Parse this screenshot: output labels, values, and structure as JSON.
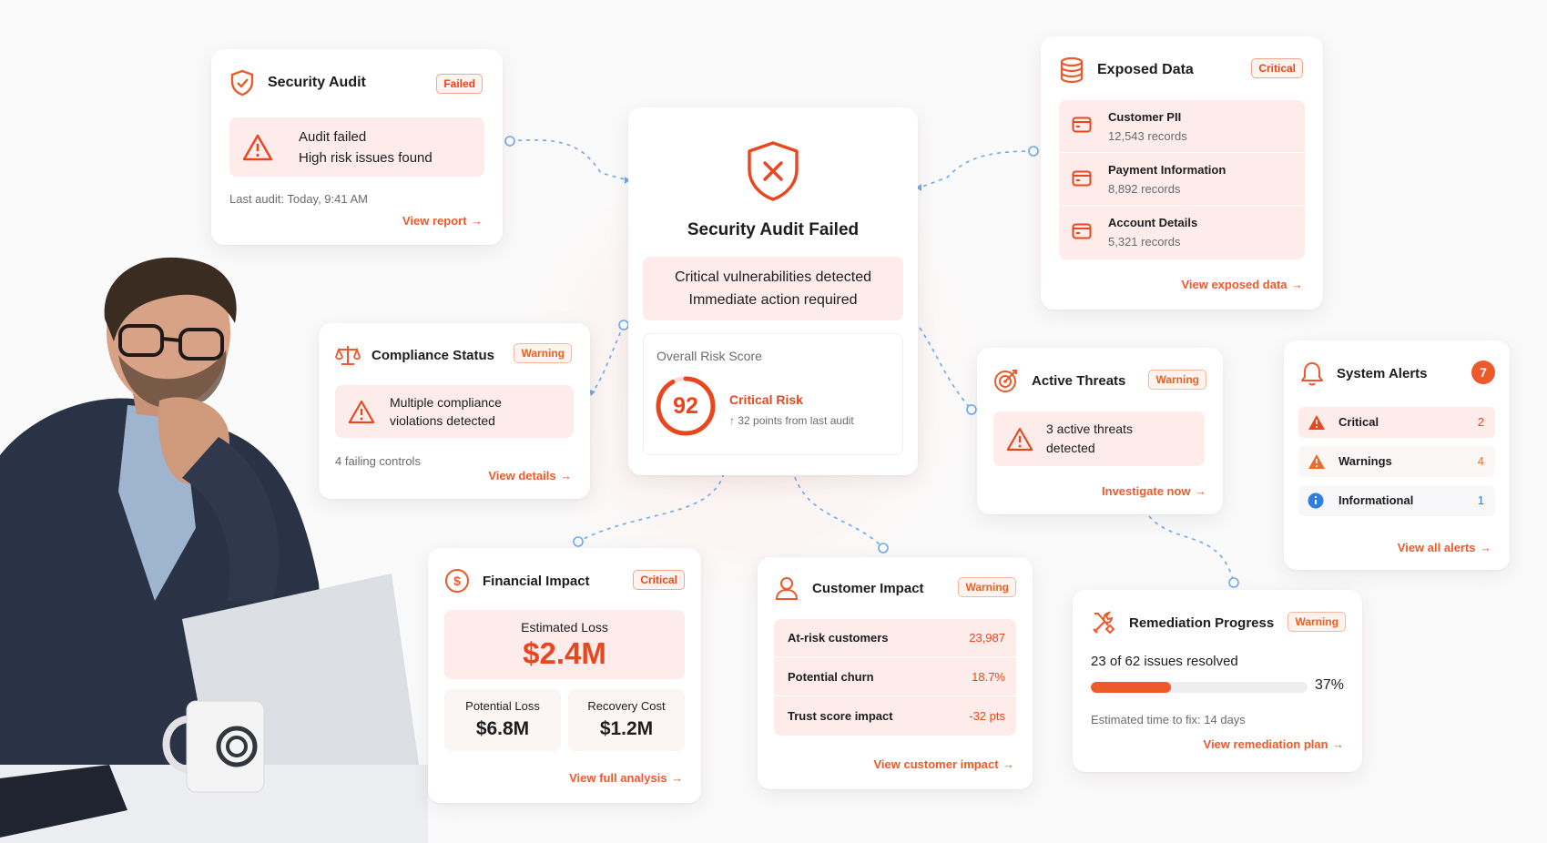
{
  "security_audit": {
    "title": "Security Audit",
    "badge": "Failed",
    "alert_line1": "Audit failed",
    "alert_line2": "High risk issues found",
    "last_audit": "Last audit: Today, 9:41 AM",
    "link": "View report"
  },
  "center": {
    "title": "Security Audit Failed",
    "msg_line1": "Critical vulnerabilities detected",
    "msg_line2": "Immediate action required",
    "risk_label": "Overall Risk Score",
    "score": "92",
    "score_fraction": 0.92,
    "risk_level": "Critical Risk",
    "delta": "32 points from last audit"
  },
  "exposed": {
    "title": "Exposed Data",
    "badge": "Critical",
    "items": [
      {
        "label": "Customer PII",
        "value": "12,543 records"
      },
      {
        "label": "Payment Information",
        "value": "8,892 records"
      },
      {
        "label": "Account Details",
        "value": "5,321 records"
      }
    ],
    "link": "View exposed data"
  },
  "compliance": {
    "title": "Compliance Status",
    "badge": "Warning",
    "alert_line1": "Multiple compliance",
    "alert_line2": "violations detected",
    "note": "4 failing controls",
    "link": "View details"
  },
  "threats": {
    "title": "Active Threats",
    "badge": "Warning",
    "alert_line1": "3 active threats",
    "alert_line2": "detected",
    "link": "Investigate now"
  },
  "alerts": {
    "title": "System Alerts",
    "count": "7",
    "items": [
      {
        "label": "Critical",
        "value": "2",
        "color": "#e8461f"
      },
      {
        "label": "Warnings",
        "value": "4",
        "color": "#ef6b2a"
      },
      {
        "label": "Informational",
        "value": "1",
        "color": "#2f7fe0"
      }
    ],
    "link": "View all alerts"
  },
  "financial": {
    "title": "Financial Impact",
    "badge": "Critical",
    "est_label": "Estimated Loss",
    "est_value": "$2.4M",
    "potential_label": "Potential Loss",
    "potential_value": "$6.8M",
    "recovery_label": "Recovery Cost",
    "recovery_value": "$1.2M",
    "link": "View full analysis"
  },
  "customer": {
    "title": "Customer Impact",
    "badge": "Warning",
    "rows": [
      {
        "label": "At-risk customers",
        "value": "23,987"
      },
      {
        "label": "Potential churn",
        "value": "18.7%"
      },
      {
        "label": "Trust score impact",
        "value": "-32 pts"
      }
    ],
    "link": "View customer impact"
  },
  "remediation": {
    "title": "Remediation Progress",
    "badge": "Warning",
    "resolved": "23 of 62 issues resolved",
    "percent": "37%",
    "progress": 0.37,
    "eta": "Estimated time to fix: 14 days",
    "link": "View remediation plan"
  },
  "colors": {
    "accent": "#ec5a2c",
    "critical": "#e8461f",
    "info": "#2f7fe0",
    "connector": "#6ea8f0"
  },
  "icons": {
    "security_audit": "shield-check-icon",
    "center": "shield-x-icon",
    "exposed": "database-icon",
    "compliance": "scale-icon",
    "threats": "target-icon",
    "alerts": "bell-icon",
    "financial": "dollar-circle-icon",
    "customer": "user-icon",
    "remediation": "tools-icon"
  }
}
